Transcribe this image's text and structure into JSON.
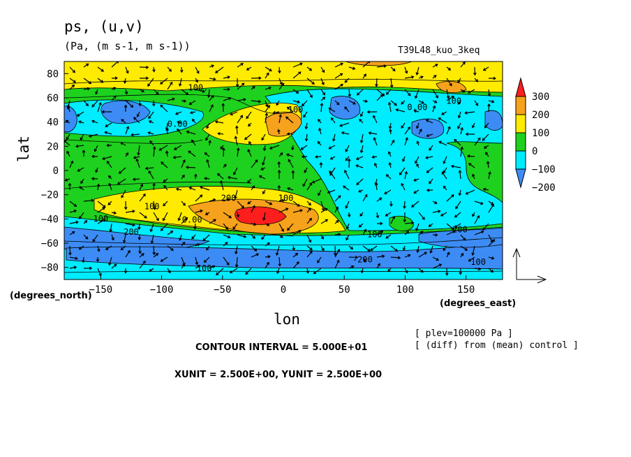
{
  "header": {
    "title": "ps, (u,v)",
    "units": "(Pa, (m s-1, m s-1))",
    "experiment": "T39L48_kuo_3keq"
  },
  "axes": {
    "xlabel": "lon",
    "ylabel": "lat",
    "xunit_note": "(degrees_east)",
    "yunit_note": "(degrees_north)"
  },
  "footer": {
    "contour_interval": "CONTOUR INTERVAL = 5.000E+01",
    "vector_units": "XUNIT = 2.500E+00, YUNIT = 2.500E+00",
    "plev_note": "[ plev=100000 Pa ]",
    "diff_note": "[ (diff) from (mean) control ]"
  },
  "chart_data": {
    "type": "heatmap",
    "overlay": "vector field (u,v) with contour lines",
    "xlim": [
      -180,
      180
    ],
    "ylim": [
      -90,
      90
    ],
    "xticks": [
      -150,
      -100,
      -50,
      0,
      50,
      100,
      150
    ],
    "yticks": [
      -80,
      -60,
      -40,
      -20,
      0,
      20,
      40,
      60,
      80
    ],
    "colorbar": {
      "levels": [
        -300,
        -200,
        -100,
        0,
        100,
        200,
        300
      ],
      "tick_labels": [
        "300",
        "200",
        "100",
        "0",
        "−100",
        "−200"
      ],
      "colors": [
        "#3d8cf5",
        "#00ecff",
        "#1ed11e",
        "#ffeb00",
        "#f7a21c",
        "#ff1e1e"
      ]
    },
    "contour_labels": [
      {
        "text": "100.",
        "lon": -70,
        "lat": 66
      },
      {
        "text": "100",
        "lon": 10,
        "lat": 48
      },
      {
        "text": "0.00",
        "lon": 110,
        "lat": 50
      },
      {
        "text": "100",
        "lon": 140,
        "lat": 55
      },
      {
        "text": "0.00",
        "lon": -87,
        "lat": 36
      },
      {
        "text": "200",
        "lon": -45,
        "lat": -25
      },
      {
        "text": "100",
        "lon": -108,
        "lat": -32
      },
      {
        "text": "100",
        "lon": 2,
        "lat": -25
      },
      {
        "text": "100",
        "lon": -150,
        "lat": -42
      },
      {
        "text": "0.00",
        "lon": -75,
        "lat": -43
      },
      {
        "text": "200",
        "lon": -125,
        "lat": -53
      },
      {
        "text": "100",
        "lon": 75,
        "lat": -55
      },
      {
        "text": "200",
        "lon": 145,
        "lat": -51
      },
      {
        "text": "-200",
        "lon": 65,
        "lat": -76
      },
      {
        "text": "100",
        "lon": -65,
        "lat": -83
      },
      {
        "text": "100",
        "lon": 160,
        "lat": -78
      }
    ]
  }
}
